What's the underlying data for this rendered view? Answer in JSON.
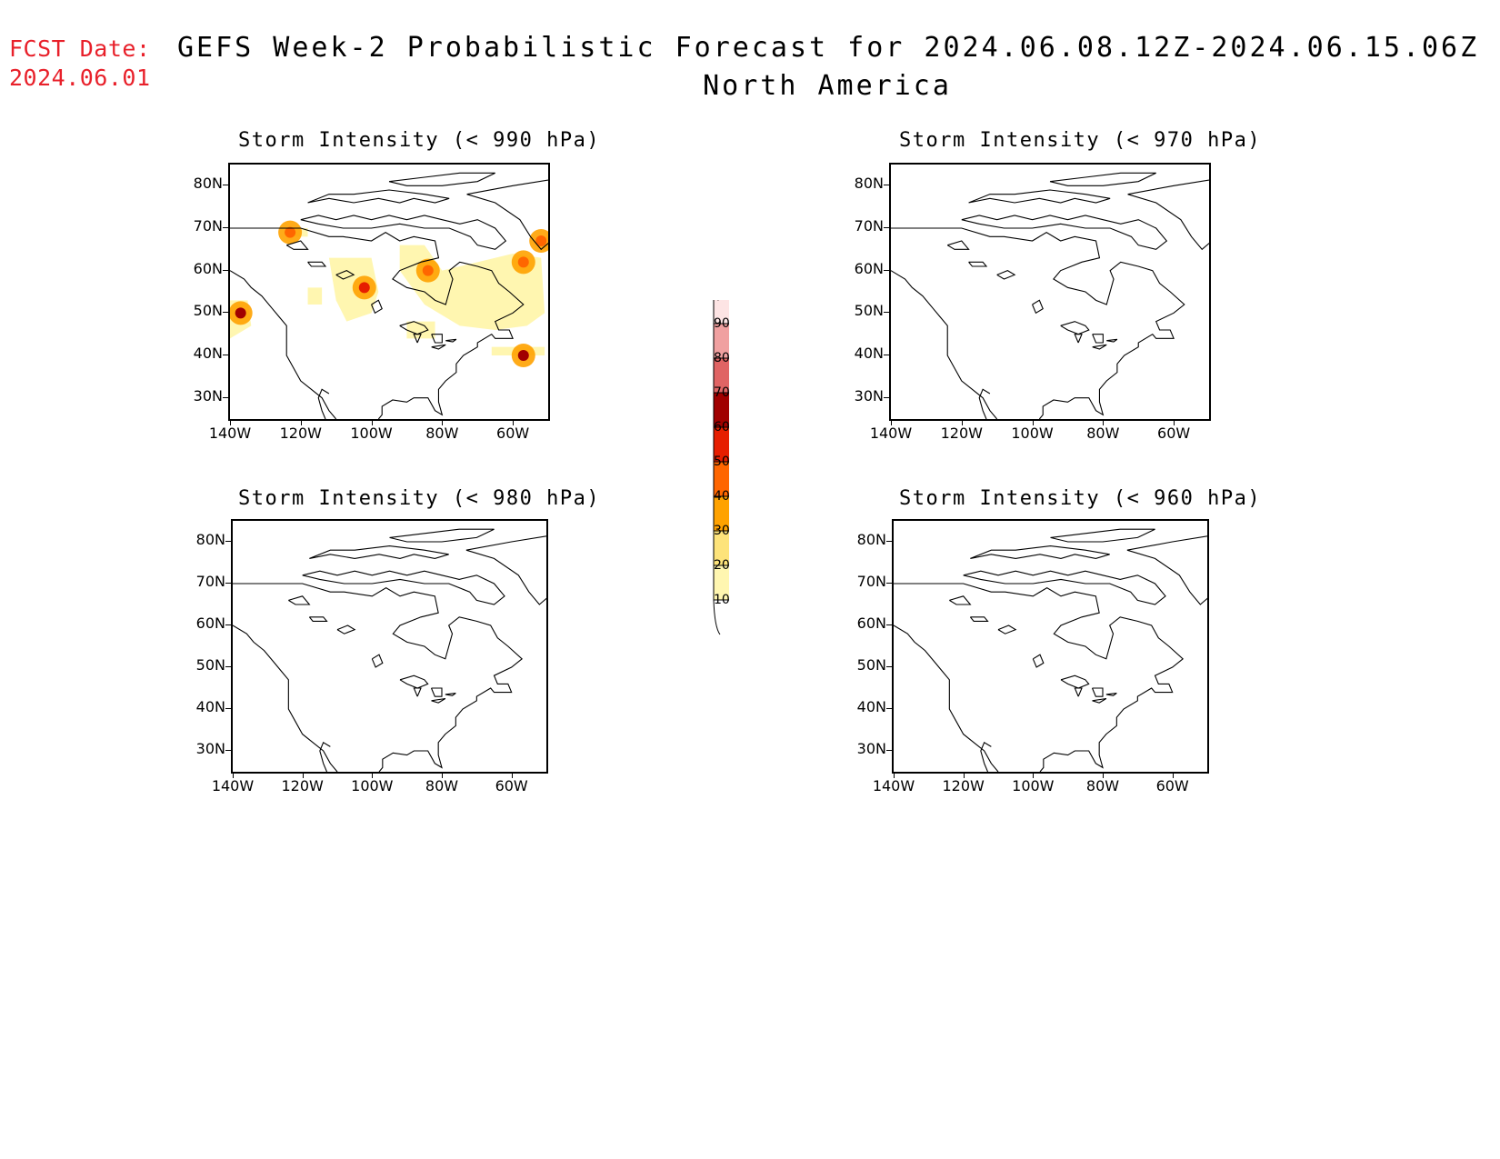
{
  "fcst": {
    "line1": "FCST Date:",
    "line2": "2024.06.01"
  },
  "title": {
    "line1": "GEFS Week-2 Probabilistic Forecast for 2024.06.08.12Z-2024.06.15.06Z",
    "line2": "North America"
  },
  "panels": [
    {
      "title": "Storm Intensity (< 990 hPa)"
    },
    {
      "title": "Storm Intensity (< 970 hPa)"
    },
    {
      "title": "Storm Intensity (< 980 hPa)"
    },
    {
      "title": "Storm Intensity (< 960 hPa)"
    }
  ],
  "axes": {
    "lat_labels": [
      "80N",
      "70N",
      "60N",
      "50N",
      "40N",
      "30N"
    ],
    "lon_labels": [
      "140W",
      "120W",
      "100W",
      "80W",
      "60W"
    ]
  },
  "colorbar": {
    "levels": [
      "10",
      "20",
      "30",
      "40",
      "50",
      "60",
      "70",
      "80",
      "90"
    ],
    "colors": [
      "#fff6b0",
      "#fde37a",
      "#ffa200",
      "#ff6600",
      "#e61e00",
      "#a00000",
      "#e06464",
      "#f0a0a0",
      "#fde4e4"
    ]
  },
  "probability_cells_990hPa": [
    {
      "lon": -137,
      "lat": 50,
      "prob": 60
    },
    {
      "lon": -102,
      "lat": 56,
      "prob": 50
    },
    {
      "lon": -123,
      "lat": 69,
      "prob": 40
    },
    {
      "lon": -57,
      "lat": 40,
      "prob": 60
    },
    {
      "lon": -84,
      "lat": 60,
      "prob": 40
    },
    {
      "lon": -57,
      "lat": 62,
      "prob": 40
    },
    {
      "lon": -52,
      "lat": 67,
      "prob": 40
    }
  ]
}
